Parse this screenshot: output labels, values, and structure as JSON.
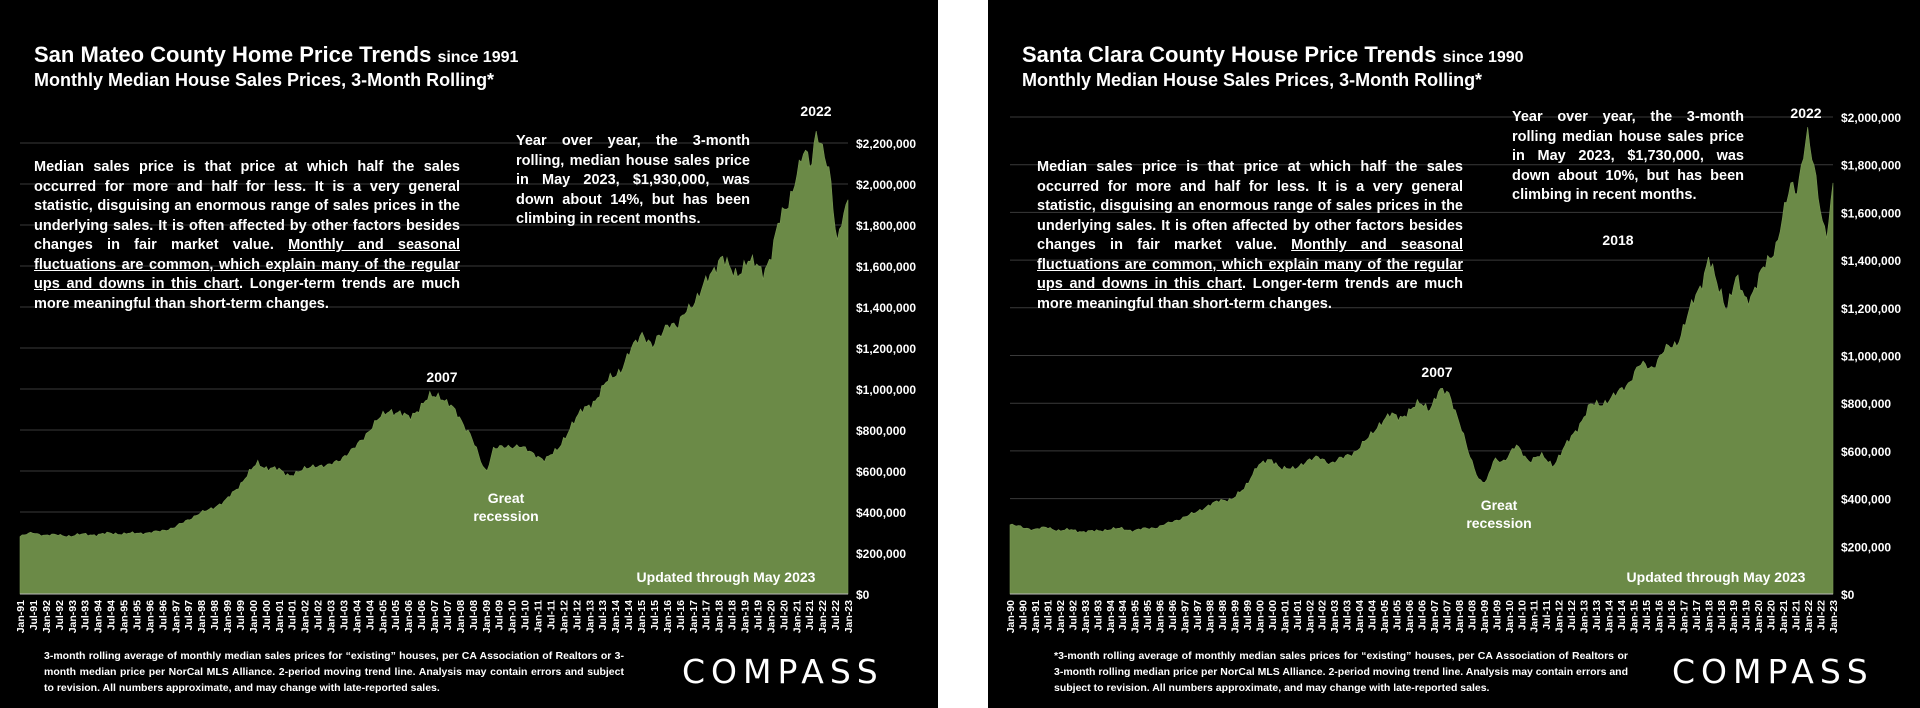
{
  "panels": [
    {
      "title": "San Mateo County Home Price Trends",
      "title_suffix": "since 1991",
      "subtitle": "Monthly Median House Sales Prices, 3-Month Rolling*",
      "explain_part1": "Median sales price is that price at which half the sales occurred for more and half for less. It is a very general statistic, disguising an enormous range of sales prices in the underlying sales. It is often affected by other factors besides changes in fair market value. ",
      "explain_underlined": "Monthly and seasonal fluctuations are common, which explain many of the regular ups and downs in this chart",
      "explain_part2": ". Longer-term trends are much more meaningful than short-term changes.",
      "yoy_text": "Year over year, the 3-month rolling, median house sales price in May 2023, $1,930,000, was down about 14%, but has been climbing in recent months.",
      "footnote": "3-month rolling average of monthly median sales prices for “existing” houses, per CA Association of Realtors or 3-month median price per NorCal MLS Alliance. 2-period moving trend line. Analysis may contain errors and subject to revision. All numbers approximate, and may change with late-reported sales.",
      "logo": "COMPASS",
      "chart_data": {
        "type": "area",
        "title": "San Mateo County Home Price Trends since 1991",
        "subtitle": "Monthly Median House Sales Prices, 3-Month Rolling*",
        "ylim": [
          0,
          2200000
        ],
        "yticks": [
          "$0",
          "$200,000",
          "$400,000",
          "$600,000",
          "$800,000",
          "$1,000,000",
          "$1,200,000",
          "$1,400,000",
          "$1,600,000",
          "$1,800,000",
          "$2,000,000",
          "$2,200,000"
        ],
        "x_start": 1991,
        "x_end": 2023.33,
        "xtick_labels": [
          "Jan-91",
          "Jul-91",
          "Jan-92",
          "Jul-92",
          "Jan-93",
          "Jul-93",
          "Jan-94",
          "Jul-94",
          "Jan-95",
          "Jul-95",
          "Jan-96",
          "Jul-96",
          "Jan-97",
          "Jul-97",
          "Jan-98",
          "Jul-98",
          "Jan-99",
          "Jul-99",
          "Jan-00",
          "Jul-00",
          "Jan-01",
          "Jul-01",
          "Jan-02",
          "Jul-02",
          "Jan-03",
          "Jul-03",
          "Jan-04",
          "Jul-04",
          "Jan-05",
          "Jul-05",
          "Jan-06",
          "Jul-06",
          "Jan-07",
          "Jul-07",
          "Jan-08",
          "Jul-08",
          "Jan-09",
          "Jul-09",
          "Jan-10",
          "Jul-10",
          "Jan-11",
          "Jul-11",
          "Jan-12",
          "Jul-12",
          "Jan-13",
          "Jul-13",
          "Jan-14",
          "Jul-14",
          "Jan-15",
          "Jul-15",
          "Jan-16",
          "Jul-16",
          "Jan-17",
          "Jul-17",
          "Jan-18",
          "Jul-18",
          "Jan-19",
          "Jul-19",
          "Jan-20",
          "Jul-20",
          "Jan-21",
          "Jul-21",
          "Jan-22",
          "Jul-22",
          "Jan-23"
        ],
        "x": [
          1991.0,
          1991.5,
          1992.0,
          1992.5,
          1993.0,
          1993.5,
          1994.0,
          1994.5,
          1995.0,
          1995.5,
          1996.0,
          1996.5,
          1997.0,
          1997.5,
          1998.0,
          1998.5,
          1999.0,
          1999.5,
          2000.0,
          2000.3,
          2000.5,
          2001.0,
          2001.5,
          2002.0,
          2002.5,
          2003.0,
          2003.5,
          2004.0,
          2004.5,
          2005.0,
          2005.4,
          2005.8,
          2006.2,
          2006.6,
          2007.0,
          2007.4,
          2007.8,
          2008.2,
          2008.6,
          2009.0,
          2009.2,
          2009.5,
          2010.0,
          2010.5,
          2011.0,
          2011.5,
          2012.0,
          2012.5,
          2013.0,
          2013.5,
          2014.0,
          2014.5,
          2015.0,
          2015.3,
          2015.7,
          2016.0,
          2016.3,
          2016.7,
          2017.0,
          2017.5,
          2018.0,
          2018.4,
          2018.8,
          2019.0,
          2019.4,
          2019.8,
          2020.0,
          2020.3,
          2020.6,
          2021.0,
          2021.3,
          2021.6,
          2021.9,
          2022.1,
          2022.3,
          2022.6,
          2022.9,
          2023.1,
          2023.33
        ],
        "values": [
          280000,
          300000,
          285000,
          290000,
          280000,
          295000,
          285000,
          300000,
          290000,
          300000,
          295000,
          310000,
          320000,
          360000,
          390000,
          420000,
          450000,
          520000,
          600000,
          640000,
          620000,
          610000,
          580000,
          600000,
          630000,
          620000,
          660000,
          700000,
          780000,
          850000,
          900000,
          880000,
          860000,
          910000,
          960000,
          970000,
          920000,
          850000,
          780000,
          640000,
          590000,
          720000,
          710000,
          730000,
          680000,
          660000,
          700000,
          820000,
          900000,
          950000,
          1050000,
          1100000,
          1220000,
          1280000,
          1200000,
          1260000,
          1330000,
          1300000,
          1380000,
          1460000,
          1560000,
          1660000,
          1560000,
          1550000,
          1640000,
          1590000,
          1560000,
          1650000,
          1800000,
          1900000,
          2050000,
          2150000,
          2080000,
          2280000,
          2200000,
          2050000,
          1700000,
          1850000,
          1930000
        ],
        "annotations": [
          "2022",
          "2007",
          "Great",
          "recession",
          "Updated through May 2023"
        ]
      }
    },
    {
      "title": "Santa Clara County House Price Trends",
      "title_suffix": "since 1990",
      "subtitle": "Monthly Median House Sales Prices, 3-Month Rolling*",
      "explain_part1": "Median sales price is that price at which half the sales occurred for more and half for less. It is a very general statistic, disguising an enormous range of sales prices in the underlying sales. It is often affected by other factors besides changes in fair market value. ",
      "explain_underlined": "Monthly and seasonal fluctuations are common, which explain many of the regular ups and downs in this chart",
      "explain_part2": ". Longer-term trends are much more meaningful than short-term changes.",
      "yoy_text": "Year over year, the 3-month rolling median house sales price in May 2023, $1,730,000, was down about 10%, but has been climbing in recent months.",
      "footnote": "*3-month rolling average of monthly median sales prices for “existing” houses, per CA Association of Realtors or 3-month rolling median price per NorCal MLS Alliance. 2-period moving trend line. Analysis may contain errors and subject to revision. All numbers approximate, and may change with late-reported sales.",
      "logo": "COMPASS",
      "chart_data": {
        "type": "area",
        "title": "Santa Clara County House Price Trends since 1990",
        "subtitle": "Monthly Median House Sales Prices, 3-Month Rolling*",
        "ylim": [
          0,
          2000000
        ],
        "yticks": [
          "$0",
          "$200,000",
          "$400,000",
          "$600,000",
          "$800,000",
          "$1,000,000",
          "$1,200,000",
          "$1,400,000",
          "$1,600,000",
          "$1,800,000",
          "$2,000,000"
        ],
        "x_start": 1990,
        "x_end": 2023.33,
        "xtick_labels": [
          "Jan-90",
          "Jul-90",
          "Jan-91",
          "Jul-91",
          "Jan-92",
          "Jul-92",
          "Jan-93",
          "Jul-93",
          "Jan-94",
          "Jul-94",
          "Jan-95",
          "Jul-95",
          "Jan-96",
          "Jul-96",
          "Jan-97",
          "Jul-97",
          "Jan-98",
          "Jul-98",
          "Jan-99",
          "Jul-99",
          "Jan-00",
          "Jul-00",
          "Jan-01",
          "Jul-01",
          "Jan-02",
          "Jul-02",
          "Jan-03",
          "Jul-03",
          "Jan-04",
          "Jul-04",
          "Jan-05",
          "Jul-05",
          "Jan-06",
          "Jul-06",
          "Jan-07",
          "Jul-07",
          "Jan-08",
          "Jul-08",
          "Jan-09",
          "Jul-09",
          "Jan-10",
          "Jul-10",
          "Jan-11",
          "Jul-11",
          "Jan-12",
          "Jul-12",
          "Jan-13",
          "Jul-13",
          "Jan-14",
          "Jul-14",
          "Jan-15",
          "Jul-15",
          "Jan-16",
          "Jul-16",
          "Jan-17",
          "Jul-17",
          "Jan-18",
          "Jul-18",
          "Jan-19",
          "Jul-19",
          "Jan-20",
          "Jul-20",
          "Jan-21",
          "Jul-21",
          "Jan-22",
          "Jul-22",
          "Jan-23"
        ],
        "x": [
          1990.0,
          1990.5,
          1991.0,
          1991.5,
          1992.0,
          1992.5,
          1993.0,
          1993.5,
          1994.0,
          1994.5,
          1995.0,
          1995.5,
          1996.0,
          1996.5,
          1997.0,
          1997.5,
          1998.0,
          1998.5,
          1999.0,
          1999.5,
          2000.0,
          2000.3,
          2000.6,
          2001.0,
          2001.5,
          2002.0,
          2002.5,
          2003.0,
          2003.5,
          2004.0,
          2004.5,
          2005.0,
          2005.4,
          2005.8,
          2006.2,
          2006.6,
          2007.0,
          2007.4,
          2007.8,
          2008.2,
          2008.6,
          2009.0,
          2009.3,
          2009.6,
          2010.0,
          2010.5,
          2011.0,
          2011.5,
          2012.0,
          2012.5,
          2013.0,
          2013.5,
          2014.0,
          2014.5,
          2015.0,
          2015.5,
          2016.0,
          2016.5,
          2017.0,
          2017.5,
          2018.0,
          2018.3,
          2018.6,
          2019.0,
          2019.4,
          2019.8,
          2020.0,
          2020.4,
          2020.8,
          2021.0,
          2021.3,
          2021.6,
          2021.9,
          2022.1,
          2022.3,
          2022.6,
          2022.9,
          2023.1,
          2023.33
        ],
        "values": [
          290000,
          280000,
          270000,
          280000,
          265000,
          270000,
          260000,
          265000,
          270000,
          275000,
          265000,
          275000,
          280000,
          300000,
          320000,
          340000,
          370000,
          390000,
          400000,
          440000,
          540000,
          550000,
          560000,
          530000,
          520000,
          560000,
          570000,
          550000,
          570000,
          600000,
          650000,
          720000,
          750000,
          740000,
          770000,
          800000,
          780000,
          850000,
          840000,
          720000,
          580000,
          480000,
          470000,
          560000,
          560000,
          620000,
          560000,
          580000,
          540000,
          620000,
          700000,
          790000,
          800000,
          830000,
          880000,
          960000,
          950000,
          1020000,
          1050000,
          1180000,
          1300000,
          1420000,
          1300000,
          1200000,
          1330000,
          1220000,
          1250000,
          1350000,
          1400000,
          1450000,
          1600000,
          1700000,
          1680000,
          1850000,
          1950000,
          1750000,
          1550000,
          1520000,
          1730000
        ],
        "annotations": [
          "2022",
          "2018",
          "2007",
          "Great",
          "recession",
          "Updated through May 2023"
        ]
      }
    }
  ]
}
